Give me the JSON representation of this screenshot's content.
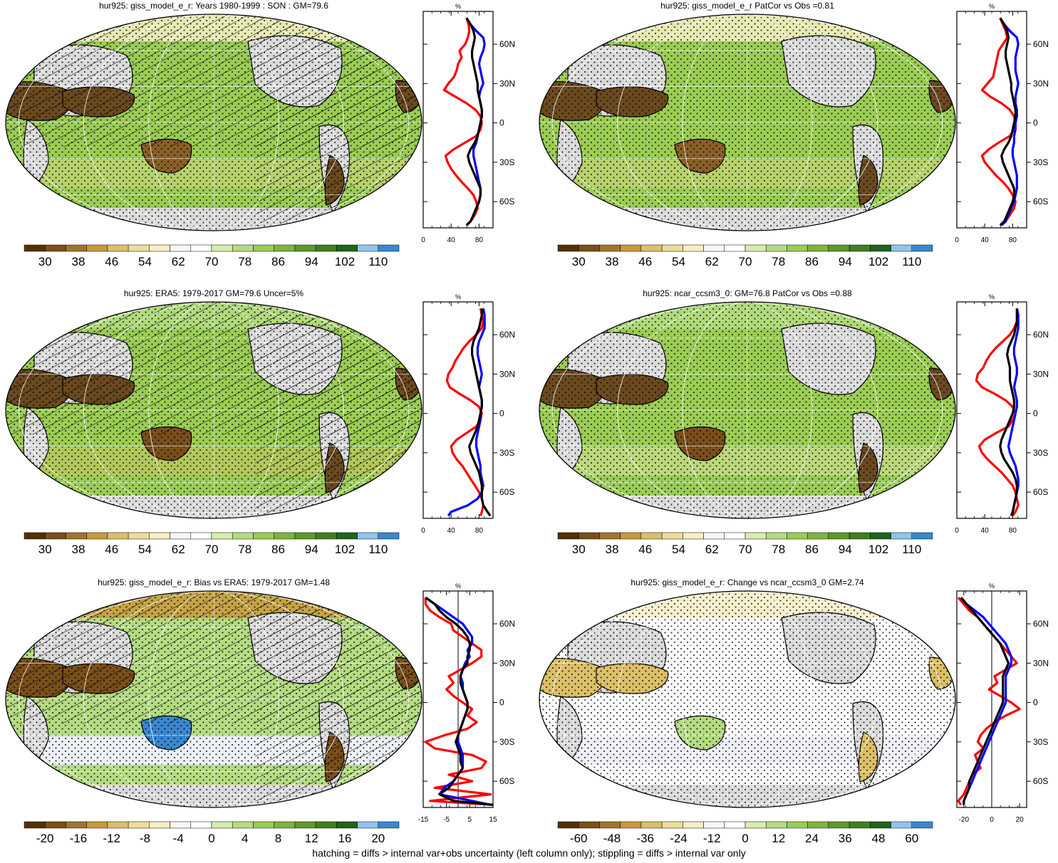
{
  "footer_note": "hatching = diffs > internal var+obs uncertainty (left column only); stippling = diffs > internal var only",
  "colors": {
    "ocean_green": "#9bcd55",
    "dry_brown": "#6b4a1f",
    "land_missing_gray": "#dcdcdc",
    "line_red": "#ff0000",
    "line_blue": "#0000ff",
    "line_black": "#000000"
  },
  "colorbar_abs": {
    "labels": [
      "30",
      "38",
      "46",
      "54",
      "62",
      "70",
      "78",
      "86",
      "94",
      "102",
      "110"
    ],
    "colors": [
      "#543005",
      "#7a4f1a",
      "#a0762e",
      "#c89a3d",
      "#dcc068",
      "#eedc9c",
      "#f6eec4",
      "#f7f7f7",
      "#ffffff",
      "#d6ecb0",
      "#b5dc82",
      "#9bcd55",
      "#7db53c",
      "#5d9a2c",
      "#3f7f20",
      "#1f6418",
      "#8fc4ee",
      "#3a88d0"
    ]
  },
  "colorbar_bias": {
    "labels": [
      "-20",
      "-16",
      "-12",
      "-8",
      "-4",
      "0",
      "4",
      "8",
      "12",
      "16",
      "20"
    ],
    "colors": [
      "#543005",
      "#7a4f1a",
      "#a0762e",
      "#c89a3d",
      "#dcc068",
      "#eedc9c",
      "#f6eec4",
      "#f7f7f7",
      "#ffffff",
      "#d6ecb0",
      "#b5dc82",
      "#9bcd55",
      "#7db53c",
      "#5d9a2c",
      "#3f7f20",
      "#1f6418",
      "#8fc4ee",
      "#3a88d0"
    ]
  },
  "colorbar_change": {
    "labels": [
      "-60",
      "-48",
      "-36",
      "-24",
      "-12",
      "0",
      "12",
      "24",
      "36",
      "48",
      "60"
    ],
    "colors": [
      "#543005",
      "#7a4f1a",
      "#a0762e",
      "#c89a3d",
      "#dcc068",
      "#eedc9c",
      "#f6eec4",
      "#f7f7f7",
      "#ffffff",
      "#d6ecb0",
      "#b5dc82",
      "#9bcd55",
      "#7db53c",
      "#5d9a2c",
      "#3f7f20",
      "#1f6418",
      "#8fc4ee",
      "#3a88d0"
    ]
  },
  "panels": [
    {
      "id": "p1",
      "title": "hur925: giss_model_e_r: Years 1980-1999 : SON : GM=79.6",
      "hatch": true,
      "style": "model",
      "cbar": "colorbar_abs"
    },
    {
      "id": "p2",
      "title": "hur925: giss_model_e_r PatCor vs Obs =0.81",
      "hatch": false,
      "style": "model",
      "cbar": "colorbar_abs"
    },
    {
      "id": "p3",
      "title": "hur925: ERA5: 1979-2017 GM=79.6 Uncer=5%",
      "hatch": true,
      "style": "era5",
      "cbar": "colorbar_abs"
    },
    {
      "id": "p4",
      "title": "hur925: ncar_ccsm3_0: GM=76.8 PatCor vs Obs =0.88",
      "hatch": false,
      "style": "ncar",
      "cbar": "colorbar_abs"
    },
    {
      "id": "p5",
      "title": "hur925: giss_model_e_r: Bias vs ERA5: 1979-2017  GM=1.48",
      "hatch": true,
      "style": "bias",
      "cbar": "colorbar_bias"
    },
    {
      "id": "p6",
      "title": "hur925: giss_model_e_r: Change vs ncar_ccsm3_0 GM=2.74",
      "hatch": false,
      "style": "change",
      "cbar": "colorbar_change"
    }
  ],
  "chart_data": [
    {
      "type": "line",
      "panel": "p1-zonal",
      "title": "%",
      "xlim": [
        0,
        100
      ],
      "xticks": [
        "0",
        "40",
        "80"
      ],
      "ylim": [
        -80,
        85
      ],
      "yticks": [
        "60N",
        "30N",
        "0",
        "30S",
        "60S"
      ],
      "y": [
        80,
        75,
        70,
        65,
        60,
        55,
        50,
        45,
        40,
        35,
        30,
        25,
        20,
        15,
        10,
        5,
        0,
        -5,
        -10,
        -15,
        -20,
        -25,
        -30,
        -35,
        -40,
        -45,
        -50,
        -55,
        -60,
        -65,
        -70,
        -75,
        -78
      ],
      "series": [
        {
          "color": "#ff0000",
          "values": [
            62,
            65,
            66,
            64,
            60,
            52,
            55,
            50,
            48,
            44,
            36,
            30,
            46,
            62,
            75,
            82,
            84,
            82,
            76,
            60,
            44,
            32,
            35,
            40,
            47,
            55,
            64,
            72,
            76,
            78,
            74,
            68,
            62
          ]
        },
        {
          "color": "#0000ff",
          "values": [
            62,
            68,
            76,
            86,
            88,
            86,
            82,
            80,
            82,
            84,
            86,
            82,
            80,
            82,
            84,
            84,
            82,
            80,
            78,
            76,
            72,
            72,
            74,
            76,
            78,
            80,
            82,
            82,
            80,
            76,
            72,
            68,
            62
          ]
        },
        {
          "color": "#000000",
          "values": [
            62,
            68,
            72,
            74,
            72,
            70,
            70,
            72,
            74,
            76,
            78,
            78,
            80,
            82,
            84,
            84,
            82,
            80,
            78,
            74,
            68,
            64,
            66,
            70,
            74,
            78,
            82,
            82,
            80,
            76,
            72,
            68,
            62
          ]
        }
      ]
    },
    {
      "type": "line",
      "panel": "p2-zonal",
      "title": "%",
      "xlim": [
        0,
        100
      ],
      "xticks": [
        "0",
        "40",
        "80"
      ],
      "ylim": [
        -80,
        85
      ],
      "yticks": [
        "60N",
        "30N",
        "0",
        "30S",
        "60S"
      ],
      "y": [
        80,
        75,
        70,
        65,
        60,
        55,
        50,
        45,
        40,
        35,
        30,
        25,
        20,
        15,
        10,
        5,
        0,
        -5,
        -10,
        -15,
        -20,
        -25,
        -30,
        -35,
        -40,
        -45,
        -50,
        -55,
        -60,
        -65,
        -70,
        -75,
        -78
      ],
      "series": [
        {
          "color": "#ff0000",
          "values": [
            62,
            66,
            70,
            72,
            66,
            60,
            58,
            56,
            54,
            52,
            44,
            36,
            48,
            64,
            76,
            82,
            84,
            82,
            76,
            60,
            46,
            36,
            40,
            48,
            56,
            66,
            74,
            80,
            84,
            82,
            76,
            70,
            64
          ]
        },
        {
          "color": "#0000ff",
          "values": [
            62,
            68,
            76,
            86,
            88,
            86,
            84,
            84,
            84,
            86,
            88,
            86,
            84,
            84,
            86,
            86,
            84,
            84,
            82,
            82,
            80,
            80,
            82,
            84,
            86,
            86,
            86,
            84,
            82,
            78,
            74,
            70,
            64
          ]
        },
        {
          "color": "#000000",
          "values": [
            62,
            68,
            72,
            74,
            72,
            70,
            70,
            72,
            74,
            76,
            78,
            78,
            80,
            82,
            84,
            84,
            82,
            80,
            78,
            74,
            68,
            64,
            66,
            70,
            74,
            78,
            82,
            82,
            80,
            76,
            72,
            68,
            62
          ]
        }
      ]
    },
    {
      "type": "line",
      "panel": "p3-zonal",
      "title": "%",
      "xlim": [
        0,
        100
      ],
      "xticks": [
        "0",
        "40",
        "80"
      ],
      "ylim": [
        -80,
        85
      ],
      "yticks": [
        "60N",
        "30N",
        "0",
        "30S",
        "60S"
      ],
      "y": [
        80,
        75,
        70,
        65,
        60,
        55,
        50,
        45,
        40,
        35,
        30,
        25,
        20,
        15,
        10,
        5,
        0,
        -5,
        -10,
        -15,
        -20,
        -25,
        -30,
        -35,
        -40,
        -45,
        -50,
        -55,
        -60,
        -65,
        -70,
        -75,
        -78
      ],
      "series": [
        {
          "color": "#ff0000",
          "values": [
            82,
            84,
            86,
            84,
            76,
            66,
            58,
            52,
            46,
            42,
            36,
            34,
            38,
            52,
            68,
            80,
            84,
            82,
            76,
            62,
            48,
            40,
            42,
            48,
            56,
            62,
            68,
            74,
            80,
            84,
            86,
            84,
            82
          ]
        },
        {
          "color": "#0000ff",
          "values": [
            86,
            88,
            88,
            88,
            84,
            80,
            78,
            78,
            80,
            82,
            84,
            82,
            80,
            82,
            84,
            84,
            82,
            82,
            80,
            78,
            76,
            76,
            78,
            80,
            82,
            82,
            84,
            86,
            84,
            78,
            64,
            40,
            36
          ]
        },
        {
          "color": "#000000",
          "values": [
            84,
            84,
            82,
            80,
            76,
            72,
            70,
            70,
            72,
            74,
            76,
            78,
            80,
            82,
            84,
            84,
            82,
            80,
            78,
            74,
            70,
            66,
            68,
            72,
            76,
            80,
            82,
            84,
            84,
            84,
            86,
            92,
            96
          ]
        }
      ]
    },
    {
      "type": "line",
      "panel": "p4-zonal",
      "title": "%",
      "xlim": [
        0,
        100
      ],
      "xticks": [
        "0",
        "40",
        "80"
      ],
      "ylim": [
        -80,
        85
      ],
      "yticks": [
        "60N",
        "30N",
        "0",
        "30S",
        "60S"
      ],
      "y": [
        80,
        75,
        70,
        65,
        60,
        55,
        50,
        45,
        40,
        35,
        30,
        25,
        20,
        15,
        10,
        5,
        0,
        -5,
        -10,
        -15,
        -20,
        -25,
        -30,
        -35,
        -40,
        -45,
        -50,
        -55,
        -60,
        -65,
        -70,
        -75,
        -78
      ],
      "series": [
        {
          "color": "#ff0000",
          "values": [
            86,
            88,
            86,
            82,
            76,
            66,
            56,
            48,
            42,
            38,
            30,
            28,
            36,
            54,
            70,
            80,
            84,
            80,
            74,
            56,
            40,
            32,
            36,
            44,
            54,
            64,
            72,
            80,
            84,
            86,
            88,
            84,
            80
          ]
        },
        {
          "color": "#0000ff",
          "values": [
            86,
            88,
            88,
            88,
            86,
            84,
            82,
            82,
            84,
            86,
            86,
            84,
            82,
            84,
            86,
            86,
            84,
            82,
            80,
            78,
            76,
            74,
            76,
            80,
            84,
            86,
            88,
            88,
            86,
            84,
            82,
            80,
            78
          ]
        },
        {
          "color": "#000000",
          "values": [
            86,
            86,
            86,
            84,
            82,
            78,
            74,
            72,
            74,
            76,
            76,
            76,
            78,
            80,
            82,
            82,
            80,
            76,
            72,
            68,
            64,
            62,
            64,
            68,
            74,
            80,
            84,
            86,
            86,
            84,
            82,
            80,
            78
          ]
        }
      ]
    },
    {
      "type": "line",
      "panel": "p5-zonal",
      "title": "%",
      "xlim": [
        -15,
        15
      ],
      "xticks": [
        "-15",
        "-5",
        "5",
        "15"
      ],
      "ylim": [
        -80,
        85
      ],
      "yticks": [
        "60N",
        "30N",
        "0",
        "30S",
        "60S"
      ],
      "y": [
        80,
        75,
        70,
        65,
        60,
        55,
        50,
        45,
        40,
        35,
        30,
        25,
        20,
        15,
        10,
        5,
        0,
        -5,
        -10,
        -15,
        -20,
        -25,
        -30,
        -35,
        -40,
        -45,
        -50,
        -55,
        -60,
        -65,
        -70,
        -75,
        -78
      ],
      "series": [
        {
          "color": "#ff0000",
          "values": [
            -14,
            -14,
            -12,
            -8,
            -3,
            -2,
            2,
            6,
            10,
            10,
            6,
            1,
            -4,
            -2,
            -5,
            -2,
            2,
            6,
            4,
            8,
            4,
            -6,
            -14,
            -10,
            6,
            12,
            10,
            -4,
            6,
            -10,
            14,
            -12,
            15
          ]
        },
        {
          "color": "#0000ff",
          "values": [
            -14,
            -10,
            -6,
            -2,
            2,
            4,
            6,
            6,
            4,
            5,
            3,
            2,
            1,
            2,
            2,
            3,
            4,
            4,
            3,
            2,
            1,
            0,
            0,
            1,
            2,
            2,
            2,
            0,
            -2,
            -6,
            -8,
            6,
            14
          ]
        },
        {
          "color": "#000000",
          "values": [
            -14,
            -10,
            -8,
            -5,
            -1,
            2,
            4,
            5,
            5,
            4,
            4,
            2,
            1,
            1,
            2,
            3,
            4,
            4,
            3,
            2,
            1,
            0,
            -1,
            0,
            1,
            1,
            2,
            0,
            -2,
            -4,
            -8,
            -2,
            15
          ]
        }
      ]
    },
    {
      "type": "line",
      "panel": "p6-zonal",
      "title": "%",
      "xlim": [
        -25,
        25
      ],
      "xticks": [
        "-20",
        "0",
        "20"
      ],
      "ylim": [
        -80,
        85
      ],
      "yticks": [
        "60N",
        "30N",
        "0",
        "30S",
        "60S"
      ],
      "y": [
        80,
        75,
        70,
        65,
        60,
        55,
        50,
        45,
        40,
        35,
        30,
        25,
        20,
        15,
        10,
        5,
        0,
        -5,
        -10,
        -15,
        -20,
        -25,
        -30,
        -35,
        -40,
        -45,
        -50,
        -55,
        -60,
        -65,
        -70,
        -75,
        -78
      ],
      "series": [
        {
          "color": "#ff0000",
          "values": [
            -24,
            -20,
            -16,
            -10,
            -6,
            -2,
            2,
            6,
            10,
            14,
            18,
            10,
            2,
            4,
            -2,
            6,
            14,
            20,
            10,
            2,
            -4,
            -8,
            -10,
            -6,
            -12,
            -10,
            -8,
            -14,
            -16,
            -18,
            -20,
            -24,
            -22
          ]
        },
        {
          "color": "#0000ff",
          "values": [
            -22,
            -18,
            -12,
            -6,
            -2,
            2,
            6,
            10,
            12,
            14,
            14,
            12,
            10,
            10,
            10,
            10,
            10,
            8,
            6,
            4,
            2,
            0,
            -2,
            -4,
            -6,
            -8,
            -10,
            -12,
            -14,
            -16,
            -18,
            -20,
            -20
          ]
        },
        {
          "color": "#000000",
          "values": [
            -22,
            -18,
            -14,
            -10,
            -6,
            -2,
            2,
            6,
            8,
            10,
            12,
            10,
            8,
            8,
            8,
            8,
            8,
            6,
            4,
            2,
            0,
            -2,
            -4,
            -6,
            -8,
            -10,
            -12,
            -14,
            -16,
            -16,
            -18,
            -20,
            -20
          ]
        }
      ]
    }
  ]
}
